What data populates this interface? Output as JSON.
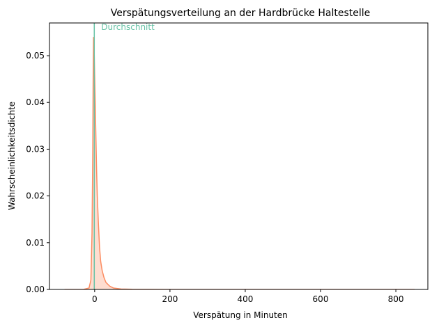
{
  "chart_data": {
    "type": "area",
    "title": "Verspätungsverteilung an der Hardbrücke Haltestelle",
    "xlabel": "Verspätung in Minuten",
    "ylabel": "Wahrscheinlichkeitsdichte",
    "xlim": [
      -120,
      885
    ],
    "ylim": [
      0,
      0.057
    ],
    "xticks": [
      0,
      200,
      400,
      600,
      800
    ],
    "xtick_labels": [
      "0",
      "200",
      "400",
      "600",
      "800"
    ],
    "yticks": [
      0,
      0.01,
      0.02,
      0.03,
      0.04,
      0.05
    ],
    "ytick_labels": [
      "0.00",
      "0.01",
      "0.02",
      "0.03",
      "0.04",
      "0.05"
    ],
    "grid": false,
    "colors": {
      "density": "#fc8d62",
      "mean": "#66c2a5"
    },
    "series": [
      {
        "x": [
          -80,
          -30,
          -15,
          -10,
          -7,
          -5,
          -4,
          -3,
          -2,
          -1,
          0,
          1,
          2,
          3,
          4,
          5,
          7,
          10,
          13,
          16,
          20,
          25,
          30,
          40,
          50,
          70,
          100,
          200,
          400,
          600,
          800,
          850
        ],
        "y": [
          0,
          0,
          0.0003,
          0.002,
          0.012,
          0.03,
          0.045,
          0.054,
          0.053,
          0.05,
          0.046,
          0.042,
          0.038,
          0.034,
          0.03,
          0.026,
          0.02,
          0.014,
          0.009,
          0.006,
          0.004,
          0.0025,
          0.0015,
          0.0007,
          0.0003,
          0.0001,
          3e-05,
          0,
          0,
          0,
          0,
          0
        ]
      }
    ],
    "annotations": [
      {
        "type": "vline",
        "x": -1,
        "label": "Durchschnitt"
      }
    ]
  }
}
